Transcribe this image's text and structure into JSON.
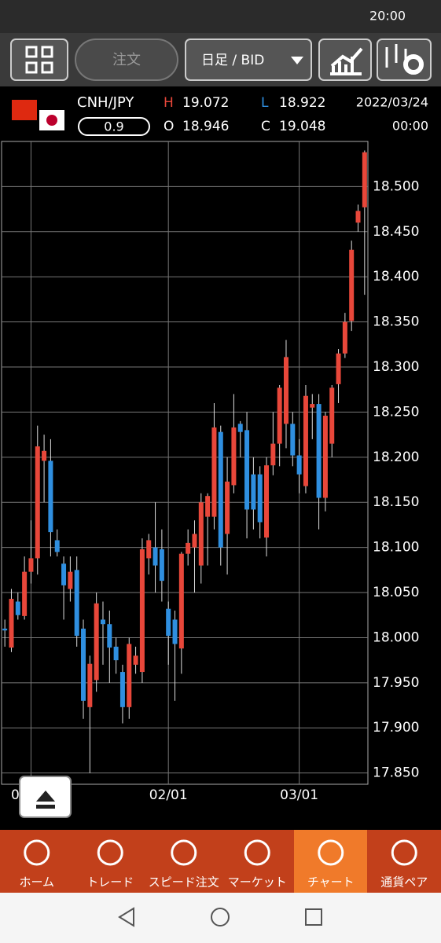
{
  "status_bar": {
    "time": "20:00"
  },
  "toolbar": {
    "order": "注文",
    "timeframe": "日足 / BID"
  },
  "quote": {
    "pair": "CNH/JPY",
    "spread": "0.9",
    "high_label": "H",
    "high": "19.072",
    "low_label": "L",
    "low": "18.922",
    "open_label": "O",
    "open": "18.946",
    "close_label": "C",
    "close": "19.048",
    "date": "2022/03/24",
    "time": "00:00"
  },
  "chart_data": {
    "type": "candlestick",
    "categories": [
      null,
      null,
      null,
      null,
      "0",
      null,
      null,
      null,
      null,
      null,
      null,
      null,
      null,
      null,
      null,
      null,
      null,
      null,
      null,
      null,
      null,
      null,
      null,
      null,
      null,
      "02/01",
      null,
      null,
      null,
      null,
      null,
      null,
      null,
      null,
      null,
      null,
      null,
      null,
      null,
      null,
      null,
      null,
      null,
      null,
      null,
      "03/01",
      null,
      null,
      null,
      null,
      null,
      null,
      null,
      null,
      null,
      null
    ],
    "open": [
      18.01,
      17.989,
      18.04,
      18.024,
      18.073,
      18.088,
      18.196,
      18.196,
      18.108,
      18.082,
      18.054,
      18.075,
      18.01,
      17.923,
      17.953,
      18.02,
      18.015,
      17.99,
      17.962,
      17.923,
      17.97,
      17.962,
      18.088,
      18.1,
      18.098,
      18.032,
      18.02,
      17.988,
      18.093,
      18.1,
      18.08,
      18.134,
      18.134,
      18.228,
      18.115,
      18.169,
      18.237,
      18.23,
      18.181,
      18.181,
      18.111,
      18.191,
      18.215,
      18.237,
      18.237,
      18.202,
      18.168,
      18.255,
      18.259,
      18.155,
      18.215,
      18.281,
      18.315,
      18.351,
      18.46,
      18.477
    ],
    "high": [
      18.02,
      18.054,
      18.05,
      18.09,
      18.13,
      18.235,
      18.225,
      18.22,
      18.12,
      18.09,
      18.09,
      18.09,
      18.02,
      17.98,
      18.05,
      18.04,
      18.03,
      18.0,
      17.97,
      18.0,
      17.99,
      18.11,
      18.115,
      18.15,
      18.12,
      18.04,
      18.03,
      18.095,
      18.12,
      18.13,
      18.16,
      18.16,
      18.26,
      18.235,
      18.2,
      18.27,
      18.24,
      18.25,
      18.2,
      18.19,
      18.2,
      18.25,
      18.28,
      18.33,
      18.25,
      18.22,
      18.28,
      18.27,
      18.27,
      18.25,
      18.28,
      18.32,
      18.36,
      18.44,
      18.48,
      18.54
    ],
    "low": [
      17.99,
      17.984,
      18.02,
      18.02,
      18.06,
      18.07,
      18.15,
      18.09,
      18.09,
      18.02,
      18.04,
      17.99,
      17.91,
      17.85,
      17.94,
      17.97,
      17.95,
      17.96,
      17.905,
      17.91,
      17.96,
      17.95,
      18.07,
      18.05,
      18.04,
      17.97,
      17.93,
      17.96,
      18.08,
      18.05,
      18.06,
      18.08,
      18.12,
      18.08,
      18.07,
      18.16,
      18.2,
      18.11,
      18.12,
      18.11,
      18.09,
      18.18,
      18.19,
      18.21,
      18.19,
      18.16,
      18.16,
      18.22,
      18.12,
      18.14,
      18.2,
      18.26,
      18.31,
      18.34,
      18.45,
      18.38
    ],
    "close": [
      18.008,
      18.043,
      18.025,
      18.073,
      18.088,
      18.212,
      18.207,
      18.117,
      18.095,
      18.058,
      18.073,
      18.002,
      17.93,
      17.971,
      18.038,
      18.015,
      17.989,
      17.975,
      17.923,
      17.993,
      17.98,
      18.098,
      18.108,
      18.08,
      18.063,
      18.002,
      17.993,
      18.093,
      18.105,
      18.115,
      18.15,
      18.157,
      18.233,
      18.1,
      18.173,
      18.233,
      18.228,
      18.142,
      18.142,
      18.128,
      18.191,
      18.215,
      18.277,
      18.311,
      18.202,
      18.181,
      18.268,
      18.259,
      18.155,
      18.246,
      18.277,
      18.315,
      18.35,
      18.43,
      18.473,
      18.538
    ],
    "up_color": "#e8473a",
    "down_color": "#2f8fe0",
    "ylim": [
      17.8375,
      18.55
    ],
    "yticks": [
      {
        "value": 17.85,
        "label": "17.850"
      },
      {
        "value": 17.9,
        "label": "17.900"
      },
      {
        "value": 17.95,
        "label": "17.950"
      },
      {
        "value": 18.0,
        "label": "18.000"
      },
      {
        "value": 18.05,
        "label": "18.050"
      },
      {
        "value": 18.1,
        "label": "18.100"
      },
      {
        "value": 18.15,
        "label": "18.150"
      },
      {
        "value": 18.2,
        "label": "18.200"
      },
      {
        "value": 18.25,
        "label": "18.250"
      },
      {
        "value": 18.3,
        "label": "18.300"
      },
      {
        "value": 18.35,
        "label": "18.350"
      },
      {
        "value": 18.4,
        "label": "18.400"
      },
      {
        "value": 18.45,
        "label": "18.450"
      },
      {
        "value": 18.5,
        "label": "18.500"
      }
    ],
    "grid": true
  },
  "nav": [
    "ホーム",
    "トレード",
    "スピード注文",
    "マーケット",
    "チャート",
    "通貨ペア"
  ]
}
